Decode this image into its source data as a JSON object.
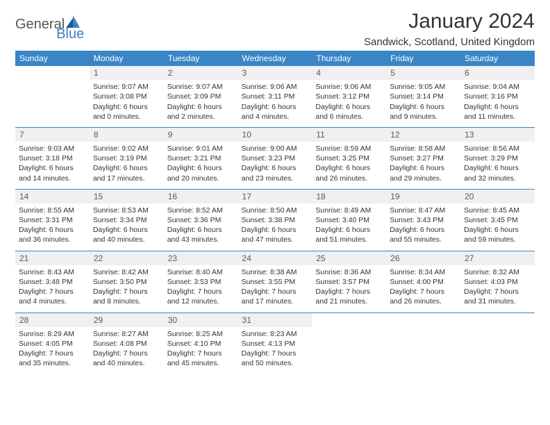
{
  "brand": {
    "part1": "General",
    "part2": "Blue"
  },
  "title": "January 2024",
  "location": "Sandwick, Scotland, United Kingdom",
  "header_bg": "#3a85c6",
  "weekdays": [
    "Sunday",
    "Monday",
    "Tuesday",
    "Wednesday",
    "Thursday",
    "Friday",
    "Saturday"
  ],
  "weeks": [
    [
      {
        "n": "",
        "sr": "",
        "ss": "",
        "dl": ""
      },
      {
        "n": "1",
        "sr": "Sunrise: 9:07 AM",
        "ss": "Sunset: 3:08 PM",
        "dl": "Daylight: 6 hours and 0 minutes."
      },
      {
        "n": "2",
        "sr": "Sunrise: 9:07 AM",
        "ss": "Sunset: 3:09 PM",
        "dl": "Daylight: 6 hours and 2 minutes."
      },
      {
        "n": "3",
        "sr": "Sunrise: 9:06 AM",
        "ss": "Sunset: 3:11 PM",
        "dl": "Daylight: 6 hours and 4 minutes."
      },
      {
        "n": "4",
        "sr": "Sunrise: 9:06 AM",
        "ss": "Sunset: 3:12 PM",
        "dl": "Daylight: 6 hours and 6 minutes."
      },
      {
        "n": "5",
        "sr": "Sunrise: 9:05 AM",
        "ss": "Sunset: 3:14 PM",
        "dl": "Daylight: 6 hours and 9 minutes."
      },
      {
        "n": "6",
        "sr": "Sunrise: 9:04 AM",
        "ss": "Sunset: 3:16 PM",
        "dl": "Daylight: 6 hours and 11 minutes."
      }
    ],
    [
      {
        "n": "7",
        "sr": "Sunrise: 9:03 AM",
        "ss": "Sunset: 3:18 PM",
        "dl": "Daylight: 6 hours and 14 minutes."
      },
      {
        "n": "8",
        "sr": "Sunrise: 9:02 AM",
        "ss": "Sunset: 3:19 PM",
        "dl": "Daylight: 6 hours and 17 minutes."
      },
      {
        "n": "9",
        "sr": "Sunrise: 9:01 AM",
        "ss": "Sunset: 3:21 PM",
        "dl": "Daylight: 6 hours and 20 minutes."
      },
      {
        "n": "10",
        "sr": "Sunrise: 9:00 AM",
        "ss": "Sunset: 3:23 PM",
        "dl": "Daylight: 6 hours and 23 minutes."
      },
      {
        "n": "11",
        "sr": "Sunrise: 8:59 AM",
        "ss": "Sunset: 3:25 PM",
        "dl": "Daylight: 6 hours and 26 minutes."
      },
      {
        "n": "12",
        "sr": "Sunrise: 8:58 AM",
        "ss": "Sunset: 3:27 PM",
        "dl": "Daylight: 6 hours and 29 minutes."
      },
      {
        "n": "13",
        "sr": "Sunrise: 8:56 AM",
        "ss": "Sunset: 3:29 PM",
        "dl": "Daylight: 6 hours and 32 minutes."
      }
    ],
    [
      {
        "n": "14",
        "sr": "Sunrise: 8:55 AM",
        "ss": "Sunset: 3:31 PM",
        "dl": "Daylight: 6 hours and 36 minutes."
      },
      {
        "n": "15",
        "sr": "Sunrise: 8:53 AM",
        "ss": "Sunset: 3:34 PM",
        "dl": "Daylight: 6 hours and 40 minutes."
      },
      {
        "n": "16",
        "sr": "Sunrise: 8:52 AM",
        "ss": "Sunset: 3:36 PM",
        "dl": "Daylight: 6 hours and 43 minutes."
      },
      {
        "n": "17",
        "sr": "Sunrise: 8:50 AM",
        "ss": "Sunset: 3:38 PM",
        "dl": "Daylight: 6 hours and 47 minutes."
      },
      {
        "n": "18",
        "sr": "Sunrise: 8:49 AM",
        "ss": "Sunset: 3:40 PM",
        "dl": "Daylight: 6 hours and 51 minutes."
      },
      {
        "n": "19",
        "sr": "Sunrise: 8:47 AM",
        "ss": "Sunset: 3:43 PM",
        "dl": "Daylight: 6 hours and 55 minutes."
      },
      {
        "n": "20",
        "sr": "Sunrise: 8:45 AM",
        "ss": "Sunset: 3:45 PM",
        "dl": "Daylight: 6 hours and 59 minutes."
      }
    ],
    [
      {
        "n": "21",
        "sr": "Sunrise: 8:43 AM",
        "ss": "Sunset: 3:48 PM",
        "dl": "Daylight: 7 hours and 4 minutes."
      },
      {
        "n": "22",
        "sr": "Sunrise: 8:42 AM",
        "ss": "Sunset: 3:50 PM",
        "dl": "Daylight: 7 hours and 8 minutes."
      },
      {
        "n": "23",
        "sr": "Sunrise: 8:40 AM",
        "ss": "Sunset: 3:53 PM",
        "dl": "Daylight: 7 hours and 12 minutes."
      },
      {
        "n": "24",
        "sr": "Sunrise: 8:38 AM",
        "ss": "Sunset: 3:55 PM",
        "dl": "Daylight: 7 hours and 17 minutes."
      },
      {
        "n": "25",
        "sr": "Sunrise: 8:36 AM",
        "ss": "Sunset: 3:57 PM",
        "dl": "Daylight: 7 hours and 21 minutes."
      },
      {
        "n": "26",
        "sr": "Sunrise: 8:34 AM",
        "ss": "Sunset: 4:00 PM",
        "dl": "Daylight: 7 hours and 26 minutes."
      },
      {
        "n": "27",
        "sr": "Sunrise: 8:32 AM",
        "ss": "Sunset: 4:03 PM",
        "dl": "Daylight: 7 hours and 31 minutes."
      }
    ],
    [
      {
        "n": "28",
        "sr": "Sunrise: 8:29 AM",
        "ss": "Sunset: 4:05 PM",
        "dl": "Daylight: 7 hours and 35 minutes."
      },
      {
        "n": "29",
        "sr": "Sunrise: 8:27 AM",
        "ss": "Sunset: 4:08 PM",
        "dl": "Daylight: 7 hours and 40 minutes."
      },
      {
        "n": "30",
        "sr": "Sunrise: 8:25 AM",
        "ss": "Sunset: 4:10 PM",
        "dl": "Daylight: 7 hours and 45 minutes."
      },
      {
        "n": "31",
        "sr": "Sunrise: 8:23 AM",
        "ss": "Sunset: 4:13 PM",
        "dl": "Daylight: 7 hours and 50 minutes."
      },
      {
        "n": "",
        "sr": "",
        "ss": "",
        "dl": ""
      },
      {
        "n": "",
        "sr": "",
        "ss": "",
        "dl": ""
      },
      {
        "n": "",
        "sr": "",
        "ss": "",
        "dl": ""
      }
    ]
  ]
}
